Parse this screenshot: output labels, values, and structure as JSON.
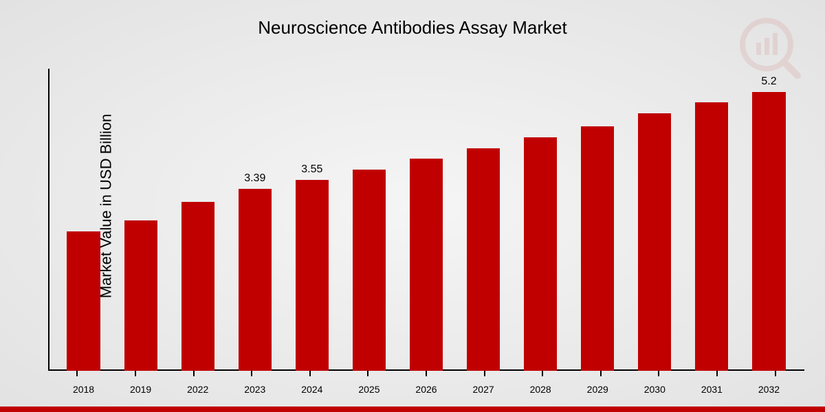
{
  "chart": {
    "type": "bar",
    "title": "Neuroscience Antibodies Assay Market",
    "title_fontsize": 26,
    "ylabel": "Market Value in USD Billion",
    "ylabel_fontsize": 22,
    "background_gradient": [
      "#f5f5f5",
      "#e2e2e2"
    ],
    "bar_color": "#c00000",
    "axis_color": "#000000",
    "text_color": "#000000",
    "value_label_fontsize": 16,
    "x_label_fontsize": 14,
    "bar_width_ratio": 0.58,
    "ylim": [
      0,
      5.5
    ],
    "categories": [
      "2018",
      "2019",
      "2022",
      "2023",
      "2024",
      "2025",
      "2026",
      "2027",
      "2028",
      "2029",
      "2030",
      "2031",
      "2032"
    ],
    "values": [
      2.6,
      2.8,
      3.15,
      3.39,
      3.55,
      3.75,
      3.95,
      4.15,
      4.35,
      4.55,
      4.8,
      5.0,
      5.2
    ],
    "value_labels": {
      "3": "3.39",
      "4": "3.55",
      "12": "5.2"
    },
    "footer_bar_color": "#c00000",
    "watermark_color": "#c00000",
    "watermark_opacity": 0.08
  }
}
